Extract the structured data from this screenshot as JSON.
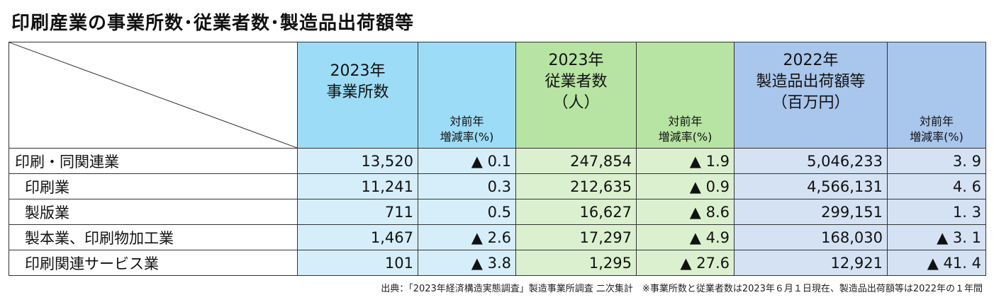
{
  "title": "印刷産業の事業所数･従業者数･製造品出荷額等",
  "headers": {
    "establishments": "2023年\n事業所数",
    "establishments_change": "対前年\n増減率(%)",
    "employees": "2023年\n従業者数\n（人）",
    "employees_change": "対前年\n増減率(%)",
    "shipments": "2022年\n製造品出荷額等\n（百万円）",
    "shipments_change": "対前年\n増減率(%)"
  },
  "rows": [
    {
      "label": "印刷・同関連業",
      "establishments": "13,520",
      "est_change": "▲ 0.1",
      "employees": "247,854",
      "emp_change": "▲ 1.9",
      "shipments": "5,046,233",
      "ship_change": "3. 9"
    },
    {
      "label": "印刷業",
      "establishments": "11,241",
      "est_change": "0.3",
      "employees": "212,635",
      "emp_change": "▲ 0.9",
      "shipments": "4,566,131",
      "ship_change": "4. 6"
    },
    {
      "label": "製版業",
      "establishments": "711",
      "est_change": "0.5",
      "employees": "16,627",
      "emp_change": "▲ 8.6",
      "shipments": "299,151",
      "ship_change": "1. 3"
    },
    {
      "label": "製本業、印刷物加工業",
      "establishments": "1,467",
      "est_change": "▲ 2.6",
      "employees": "17,297",
      "emp_change": "▲ 4.9",
      "shipments": "168,030",
      "ship_change": "▲ 3. 1"
    },
    {
      "label": "印刷関連サービス業",
      "establishments": "101",
      "est_change": "▲ 3.8",
      "employees": "1,295",
      "emp_change": "▲ 27.6",
      "shipments": "12,921",
      "ship_change": "▲ 41. 4"
    }
  ],
  "source": "出典：「2023年経済構造実態調査」製造事業所調査 二次集計　※事業所数と従業者数は2023年６月１日現在、製造品出荷額等は2022年の１年間",
  "colors": {
    "establishments_header": "#9ddcf6",
    "employees_header": "#b7e4a2",
    "shipments_header": "#a9c6ec",
    "establishments_cell": "#d6eef9",
    "employees_cell": "#dbf0cf",
    "shipments_cell": "#d4e2f4"
  }
}
